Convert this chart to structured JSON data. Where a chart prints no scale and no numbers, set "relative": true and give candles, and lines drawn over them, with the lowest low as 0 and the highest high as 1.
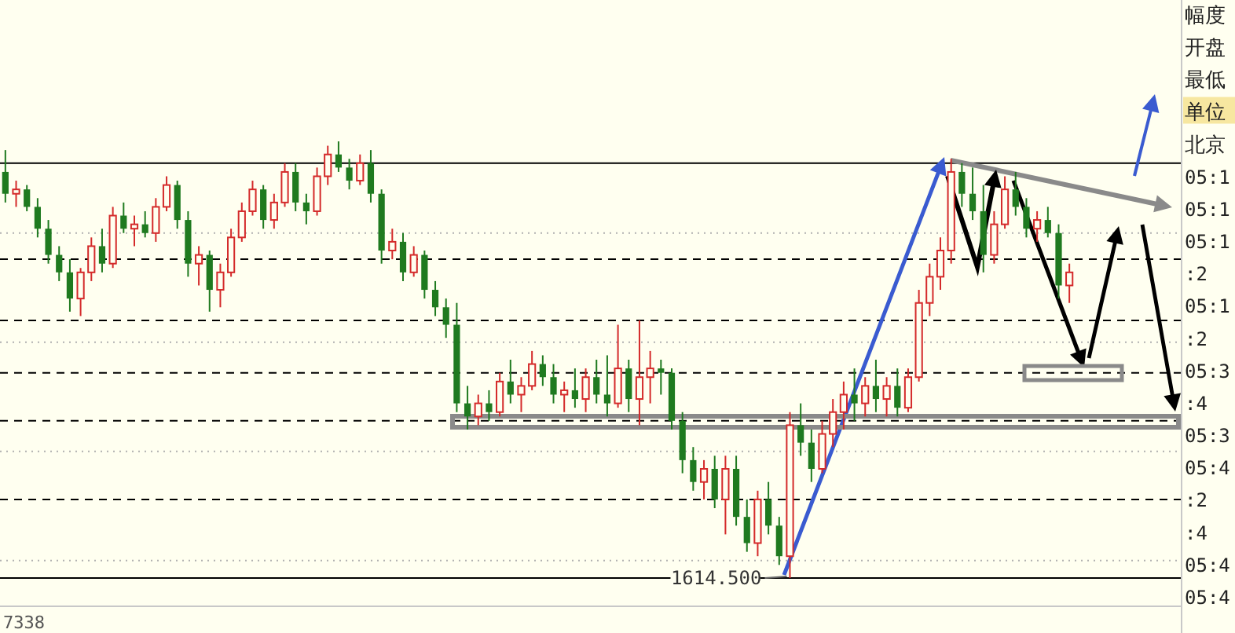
{
  "chart_data": {
    "type": "candlestick",
    "relative": true,
    "categories": [
      null,
      null,
      null,
      null,
      null,
      null,
      null,
      null,
      null,
      null,
      null,
      null,
      null,
      null,
      null,
      null,
      null,
      null,
      null,
      null,
      null,
      null,
      null,
      null,
      null,
      null,
      null,
      null,
      null,
      null,
      null,
      null,
      null,
      null,
      null,
      null,
      null,
      null,
      null,
      null,
      null,
      null,
      null,
      null,
      null,
      null,
      null,
      null,
      null,
      null,
      null,
      null,
      null,
      null,
      null,
      null,
      null,
      null,
      null,
      null,
      null,
      null,
      null,
      null,
      null,
      null,
      null,
      null,
      null,
      null,
      null,
      null,
      null,
      null,
      null,
      null,
      null,
      null,
      null,
      null,
      null,
      null,
      null,
      null,
      null,
      null,
      null,
      null,
      null,
      null,
      null,
      null,
      null,
      null,
      null,
      null,
      null,
      null,
      null,
      null
    ],
    "ohlc": [
      [
        0.93,
        0.98,
        0.86,
        0.88
      ],
      [
        0.88,
        0.91,
        0.85,
        0.89
      ],
      [
        0.89,
        0.9,
        0.84,
        0.85
      ],
      [
        0.85,
        0.87,
        0.78,
        0.8
      ],
      [
        0.8,
        0.82,
        0.72,
        0.74
      ],
      [
        0.74,
        0.76,
        0.68,
        0.7
      ],
      [
        0.7,
        0.73,
        0.61,
        0.64
      ],
      [
        0.64,
        0.71,
        0.6,
        0.7
      ],
      [
        0.7,
        0.78,
        0.68,
        0.76
      ],
      [
        0.76,
        0.8,
        0.7,
        0.72
      ],
      [
        0.72,
        0.85,
        0.71,
        0.83
      ],
      [
        0.83,
        0.86,
        0.79,
        0.8
      ],
      [
        0.8,
        0.83,
        0.76,
        0.81
      ],
      [
        0.81,
        0.84,
        0.78,
        0.79
      ],
      [
        0.79,
        0.87,
        0.77,
        0.85
      ],
      [
        0.85,
        0.92,
        0.84,
        0.9
      ],
      [
        0.9,
        0.91,
        0.8,
        0.82
      ],
      [
        0.82,
        0.84,
        0.69,
        0.72
      ],
      [
        0.72,
        0.76,
        0.67,
        0.74
      ],
      [
        0.74,
        0.75,
        0.61,
        0.66
      ],
      [
        0.66,
        0.72,
        0.62,
        0.7
      ],
      [
        0.7,
        0.8,
        0.69,
        0.78
      ],
      [
        0.78,
        0.86,
        0.77,
        0.84
      ],
      [
        0.84,
        0.91,
        0.83,
        0.89
      ],
      [
        0.89,
        0.9,
        0.8,
        0.82
      ],
      [
        0.82,
        0.88,
        0.8,
        0.86
      ],
      [
        0.86,
        0.95,
        0.85,
        0.93
      ],
      [
        0.93,
        0.95,
        0.84,
        0.86
      ],
      [
        0.86,
        0.88,
        0.81,
        0.84
      ],
      [
        0.84,
        0.94,
        0.83,
        0.92
      ],
      [
        0.92,
        0.99,
        0.9,
        0.97
      ],
      [
        0.97,
        1,
        0.93,
        0.94
      ],
      [
        0.94,
        0.96,
        0.89,
        0.91
      ],
      [
        0.91,
        0.97,
        0.9,
        0.95
      ],
      [
        0.95,
        0.98,
        0.86,
        0.88
      ],
      [
        0.88,
        0.89,
        0.72,
        0.75
      ],
      [
        0.75,
        0.8,
        0.73,
        0.77
      ],
      [
        0.77,
        0.79,
        0.68,
        0.7
      ],
      [
        0.7,
        0.76,
        0.69,
        0.74
      ],
      [
        0.74,
        0.75,
        0.64,
        0.66
      ],
      [
        0.66,
        0.68,
        0.6,
        0.62
      ],
      [
        0.62,
        0.64,
        0.55,
        0.58
      ],
      [
        0.58,
        0.63,
        0.38,
        0.4
      ],
      [
        0.4,
        0.44,
        0.34,
        0.37
      ],
      [
        0.37,
        0.42,
        0.35,
        0.4
      ],
      [
        0.4,
        0.43,
        0.36,
        0.38
      ],
      [
        0.38,
        0.47,
        0.37,
        0.45
      ],
      [
        0.45,
        0.5,
        0.4,
        0.42
      ],
      [
        0.42,
        0.46,
        0.38,
        0.44
      ],
      [
        0.44,
        0.52,
        0.43,
        0.49
      ],
      [
        0.49,
        0.51,
        0.44,
        0.46
      ],
      [
        0.46,
        0.49,
        0.4,
        0.42
      ],
      [
        0.42,
        0.45,
        0.38,
        0.43
      ],
      [
        0.43,
        0.48,
        0.39,
        0.41
      ],
      [
        0.41,
        0.48,
        0.38,
        0.46
      ],
      [
        0.46,
        0.5,
        0.4,
        0.42
      ],
      [
        0.42,
        0.51,
        0.37,
        0.4
      ],
      [
        0.4,
        0.58,
        0.39,
        0.48
      ],
      [
        0.48,
        0.5,
        0.38,
        0.41
      ],
      [
        0.41,
        0.59,
        0.35,
        0.46
      ],
      [
        0.46,
        0.52,
        0.4,
        0.48
      ],
      [
        0.48,
        0.5,
        0.42,
        0.47
      ],
      [
        0.47,
        0.48,
        0.34,
        0.36
      ],
      [
        0.36,
        0.38,
        0.24,
        0.27
      ],
      [
        0.27,
        0.3,
        0.2,
        0.22
      ],
      [
        0.22,
        0.27,
        0.18,
        0.25
      ],
      [
        0.25,
        0.28,
        0.16,
        0.18
      ],
      [
        0.18,
        0.28,
        0.1,
        0.25
      ],
      [
        0.25,
        0.28,
        0.12,
        0.14
      ],
      [
        0.14,
        0.18,
        0.06,
        0.08
      ],
      [
        0.08,
        0.2,
        0.05,
        0.18
      ],
      [
        0.18,
        0.22,
        0.1,
        0.12
      ],
      [
        0.12,
        0.14,
        0.03,
        0.05
      ],
      [
        0.05,
        0.38,
        0,
        0.35
      ],
      [
        0.35,
        0.4,
        0.28,
        0.31
      ],
      [
        0.31,
        0.34,
        0.22,
        0.25
      ],
      [
        0.25,
        0.36,
        0.24,
        0.33
      ],
      [
        0.33,
        0.41,
        0.3,
        0.38
      ],
      [
        0.38,
        0.45,
        0.34,
        0.42
      ],
      [
        0.42,
        0.48,
        0.36,
        0.4
      ],
      [
        0.4,
        0.46,
        0.37,
        0.44
      ],
      [
        0.44,
        0.5,
        0.38,
        0.41
      ],
      [
        0.41,
        0.46,
        0.37,
        0.44
      ],
      [
        0.44,
        0.48,
        0.37,
        0.39
      ],
      [
        0.39,
        0.48,
        0.38,
        0.46
      ],
      [
        0.46,
        0.66,
        0.45,
        0.63
      ],
      [
        0.63,
        0.72,
        0.6,
        0.69
      ],
      [
        0.69,
        0.78,
        0.66,
        0.75
      ],
      [
        0.75,
        0.96,
        0.72,
        0.93
      ],
      [
        0.93,
        0.95,
        0.85,
        0.88
      ],
      [
        0.88,
        0.94,
        0.82,
        0.84
      ],
      [
        0.84,
        0.9,
        0.7,
        0.74
      ],
      [
        0.74,
        0.84,
        0.72,
        0.81
      ],
      [
        0.81,
        0.92,
        0.8,
        0.89
      ],
      [
        0.89,
        0.93,
        0.83,
        0.85
      ],
      [
        0.85,
        0.87,
        0.78,
        0.8
      ],
      [
        0.8,
        0.84,
        0.77,
        0.82
      ],
      [
        0.82,
        0.85,
        0.78,
        0.79
      ],
      [
        0.79,
        0.81,
        0.64,
        0.67
      ],
      [
        0.67,
        0.72,
        0.63,
        0.7
      ]
    ],
    "ref_lines": [
      {
        "axis": "y",
        "value": 0.95,
        "color": "#000000",
        "line_style": "solid"
      },
      {
        "axis": "y",
        "value": 0,
        "color": "#000000",
        "line_style": "solid"
      },
      {
        "axis": "y",
        "value": 0.73,
        "color": "#000000",
        "line_style": "dashed"
      },
      {
        "axis": "y",
        "value": 0.59,
        "color": "#000000",
        "line_style": "dashed"
      },
      {
        "axis": "y",
        "value": 0.47,
        "color": "#000000",
        "line_style": "dashed"
      },
      {
        "axis": "y",
        "value": 0.36,
        "color": "#000000",
        "line_style": "dashed"
      },
      {
        "axis": "y",
        "value": 0.18,
        "color": "#000000",
        "line_style": "dashed"
      },
      {
        "axis": "y",
        "value": 0.79,
        "color": "#b0b0b0",
        "line_style": "dotted"
      },
      {
        "axis": "y",
        "value": 0.54,
        "color": "#b0b0b0",
        "line_style": "dotted"
      },
      {
        "axis": "y",
        "value": 0.29,
        "color": "#b0b0b0",
        "line_style": "dotted"
      },
      {
        "axis": "y",
        "value": 0.04,
        "color": "#b0b0b0",
        "line_style": "dotted"
      }
    ],
    "annotations": [
      {
        "text": "1614.500",
        "y": 0
      },
      "7338",
      "幅度",
      "开盘",
      "最低",
      "单位",
      "北京",
      "05:1",
      "05:1",
      "05:1",
      ":2",
      "05:1",
      ":2",
      "05:3",
      ":4",
      "05:3",
      "05:4",
      ":2",
      ":4",
      "05:4",
      "05:4"
    ]
  }
}
